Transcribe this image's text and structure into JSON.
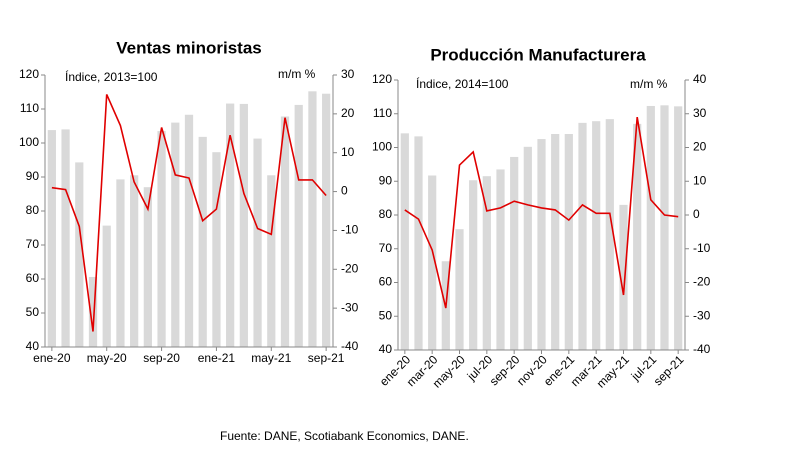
{
  "chart_data": [
    {
      "type": "bar-line",
      "title": "Ventas minoristas",
      "annotations": [
        "Índice, 2013=100",
        "m/m %"
      ],
      "categories": [
        "ene-20",
        null,
        null,
        null,
        "may-20",
        null,
        null,
        null,
        "sep-20",
        null,
        null,
        null,
        "ene-21",
        null,
        null,
        null,
        "may-21",
        null,
        null,
        null,
        "sep-21"
      ],
      "series": [
        {
          "name": "Índice",
          "color": "#d9d9d9",
          "kind": "bar",
          "values": [
            103.8,
            104,
            94.3,
            60.6,
            75.7,
            89.3,
            90.5,
            87,
            103.5,
            106,
            108.3,
            101.8,
            97.3,
            111.6,
            111.5,
            101.3,
            90.5,
            107.8,
            111.2,
            115.2,
            114.5
          ]
        },
        {
          "name": "m/m %",
          "color": "#e00000",
          "kind": "line",
          "axis": "y2",
          "values": [
            1,
            0.5,
            -9,
            -36,
            25,
            17,
            2.5,
            -4.5,
            16.5,
            4.3,
            3.5,
            -7.5,
            -4.5,
            14.5,
            -0.5,
            -9.5,
            -11,
            19,
            3,
            3,
            -1
          ]
        }
      ],
      "ylim": [
        40,
        120
      ],
      "yticks": [
        40,
        50,
        60,
        70,
        80,
        90,
        100,
        110,
        120
      ],
      "y2lim": [
        -40,
        30
      ],
      "y2ticks": [
        -40,
        -30,
        -20,
        -10,
        0,
        10,
        20,
        30
      ]
    },
    {
      "type": "bar-line",
      "title": "Producción Manufacturera",
      "annotations": [
        "Índice, 2014=100",
        "m/m %"
      ],
      "categories": [
        "ene-20",
        null,
        "mar-20",
        null,
        "may-20",
        null,
        "jul-20",
        null,
        "sep-20",
        null,
        "nov-20",
        null,
        "ene-21",
        null,
        "mar-21",
        null,
        "may-21",
        null,
        "jul-21",
        null,
        "sep-21"
      ],
      "series": [
        {
          "name": "Índice",
          "color": "#d9d9d9",
          "kind": "bar",
          "values": [
            104.2,
            103.3,
            91.7,
            66.3,
            75.8,
            90.3,
            91.5,
            93.5,
            97.2,
            100.2,
            102.5,
            104,
            104,
            107.3,
            107.8,
            108.4,
            83,
            107,
            112.3,
            112.5,
            112.2
          ]
        },
        {
          "name": "m/m %",
          "color": "#e00000",
          "kind": "line",
          "axis": "y2",
          "values": [
            1.5,
            -1.2,
            -10.4,
            -27.6,
            14.8,
            18.7,
            1.2,
            2.1,
            4.1,
            3,
            2.1,
            1.5,
            -1.5,
            3,
            0.5,
            0.5,
            -23.7,
            29,
            4.5,
            0,
            -0.5
          ]
        }
      ],
      "ylim": [
        40,
        120
      ],
      "yticks": [
        40,
        50,
        60,
        70,
        80,
        90,
        100,
        110,
        120
      ],
      "y2lim": [
        -40,
        40
      ],
      "y2ticks": [
        -40,
        -30,
        -20,
        -10,
        0,
        10,
        20,
        30,
        40
      ]
    }
  ],
  "footer": "Fuente:  DANE, Scotiabank Economics, DANE."
}
